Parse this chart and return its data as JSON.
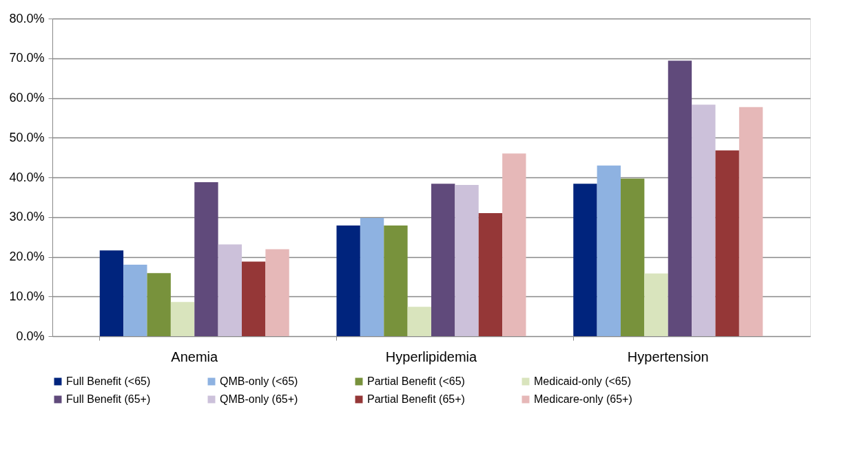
{
  "chart_data": {
    "type": "bar",
    "categories": [
      "Anemia",
      "Hyperlipidemia",
      "Hypertension"
    ],
    "series": [
      {
        "name": "Full Benefit (<65)",
        "color": "#00247d",
        "values": [
          21.6,
          27.9,
          38.4
        ]
      },
      {
        "name": "QMB-only (<65)",
        "color": "#8eb2e1",
        "values": [
          18.0,
          29.8,
          43.0
        ]
      },
      {
        "name": "Partial Benefit (<65)",
        "color": "#78923c",
        "values": [
          15.9,
          27.9,
          39.7
        ]
      },
      {
        "name": "Medicaid-only (<65)",
        "color": "#d9e4bd",
        "values": [
          8.6,
          7.4,
          15.8
        ]
      },
      {
        "name": "Full Benefit (65+)",
        "color": "#604a7b",
        "values": [
          38.8,
          38.4,
          69.4
        ]
      },
      {
        "name": "QMB-only (65+)",
        "color": "#ccc1da",
        "values": [
          23.1,
          38.1,
          58.3
        ]
      },
      {
        "name": "Partial Benefit (65+)",
        "color": "#953737",
        "values": [
          18.8,
          31.0,
          46.8
        ]
      },
      {
        "name": "Medicare-only (65+)",
        "color": "#e6b8b8",
        "values": [
          21.9,
          46.0,
          57.7
        ]
      }
    ],
    "ylim": [
      0,
      80
    ],
    "yticks": [
      {
        "value": 0,
        "label": "0.0%"
      },
      {
        "value": 10,
        "label": "10.0%"
      },
      {
        "value": 20,
        "label": "20.0%"
      },
      {
        "value": 30,
        "label": "30.0%"
      },
      {
        "value": 40,
        "label": "40.0%"
      },
      {
        "value": 50,
        "label": "50.0%"
      },
      {
        "value": 60,
        "label": "60.0%"
      },
      {
        "value": 70,
        "label": "70.0%"
      },
      {
        "value": 80,
        "label": "80.0%"
      }
    ],
    "grid": "y",
    "legend": "bottom"
  }
}
